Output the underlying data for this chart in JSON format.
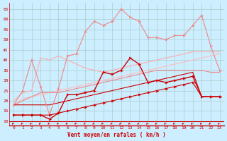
{
  "background_color": "#cceeff",
  "grid_color": "#aacccc",
  "xlabel": "Vent moyen/en rafales ( km/h )",
  "xlabel_color": "#cc0000",
  "x": [
    0,
    1,
    2,
    3,
    4,
    5,
    6,
    7,
    8,
    9,
    10,
    11,
    12,
    13,
    14,
    15,
    16,
    17,
    18,
    19,
    20,
    21,
    22,
    23
  ],
  "ylim": [
    8,
    68
  ],
  "yticks": [
    10,
    15,
    20,
    25,
    30,
    35,
    40,
    45,
    50,
    55,
    60,
    65
  ],
  "lines": [
    {
      "y": [
        13,
        13,
        13,
        13,
        13,
        14,
        15,
        16,
        17,
        18,
        19,
        20,
        21,
        22,
        23,
        24,
        25,
        26,
        27,
        28,
        29,
        22,
        22,
        22
      ],
      "color": "#cc0000",
      "lw": 0.8,
      "marker": "4",
      "ms": 3,
      "zorder": 5
    },
    {
      "y": [
        18,
        18,
        18,
        18,
        18,
        19,
        20,
        21,
        22,
        23,
        24,
        25,
        26,
        27,
        28,
        29,
        30,
        31,
        32,
        33,
        34,
        22,
        22,
        22
      ],
      "color": "#cc0000",
      "lw": 0.8,
      "marker": null,
      "ms": 0,
      "zorder": 4
    },
    {
      "y": [
        13,
        13,
        13,
        13,
        11,
        14,
        23,
        23,
        24,
        25,
        34,
        33,
        35,
        41,
        38,
        29,
        30,
        29,
        30,
        31,
        32,
        22,
        22,
        22
      ],
      "color": "#cc0000",
      "lw": 1.0,
      "marker": "4",
      "ms": 3,
      "zorder": 6
    },
    {
      "y": [
        18,
        20,
        22,
        24,
        24,
        24,
        25,
        26,
        27,
        28,
        29,
        30,
        31,
        32,
        33,
        34,
        35,
        35,
        35,
        35,
        35,
        35,
        34,
        34
      ],
      "color": "#ee8888",
      "lw": 0.8,
      "marker": null,
      "ms": 0,
      "zorder": 3
    },
    {
      "y": [
        18,
        25,
        40,
        27,
        13,
        26,
        42,
        43,
        54,
        59,
        57,
        59,
        65,
        61,
        59,
        51,
        51,
        50,
        52,
        52,
        57,
        62,
        47,
        35
      ],
      "color": "#ee8888",
      "lw": 0.8,
      "marker": "4",
      "ms": 3,
      "zorder": 4
    },
    {
      "y": [
        20,
        24,
        25,
        41,
        40,
        42,
        40,
        38,
        36,
        35,
        34,
        35,
        36,
        37,
        38,
        39,
        40,
        41,
        42,
        43,
        44,
        44,
        44,
        44
      ],
      "color": "#ffaaaa",
      "lw": 0.8,
      "marker": null,
      "ms": 0,
      "zorder": 2
    },
    {
      "y": [
        18,
        21,
        22,
        23,
        24,
        25,
        26,
        27,
        28,
        29,
        30,
        31,
        32,
        33,
        34,
        35,
        36,
        37,
        38,
        39,
        40,
        41,
        42,
        43
      ],
      "color": "#ffbbbb",
      "lw": 0.8,
      "marker": null,
      "ms": 0,
      "zorder": 2
    }
  ]
}
